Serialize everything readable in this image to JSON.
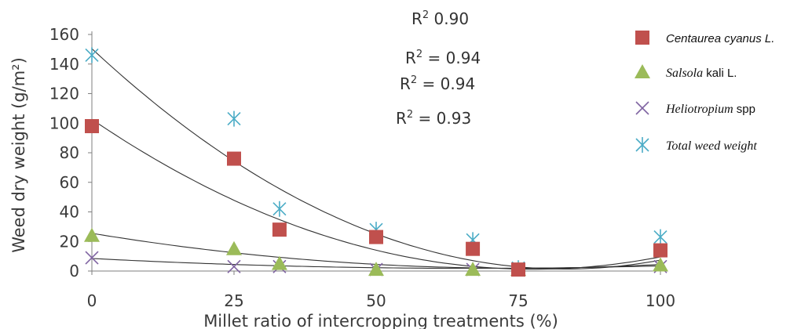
{
  "chart_data": {
    "type": "scatter",
    "title": "",
    "xlabel": "Millet ratio of intercropping treatments (%)",
    "ylabel": "Weed dry weight (g/m2)",
    "ylabel_display": "Weed dry weight (g/m²)",
    "x_ticks": [
      0,
      25,
      50,
      75,
      100
    ],
    "y_ticks": [
      0,
      20,
      40,
      60,
      80,
      100,
      120,
      140,
      160
    ],
    "xlim": [
      0,
      100
    ],
    "ylim": [
      0,
      160
    ],
    "grid": false,
    "legend_position": "right",
    "series": [
      {
        "name": "Centaurea cyanus L.",
        "marker": "square",
        "color": "#c0504d",
        "x": [
          0,
          25,
          33,
          50,
          67,
          75,
          100
        ],
        "y": [
          98,
          76,
          28,
          23,
          15,
          1,
          14
        ],
        "trend_coeffs": [
          102.6,
          -2.61,
          0.0168
        ]
      },
      {
        "name": "Salsola kali L.",
        "marker": "triangle",
        "color": "#9bbb59",
        "x": [
          0,
          25,
          33,
          50,
          67,
          75,
          100
        ],
        "y": [
          24,
          15,
          5,
          1,
          1,
          1,
          4
        ],
        "trend_coeffs": [
          25.5,
          -0.63,
          0.0042
        ]
      },
      {
        "name": "Heliotropium spp",
        "marker": "x",
        "color": "#8064a2",
        "x": [
          0,
          25,
          33,
          50,
          67,
          75,
          100
        ],
        "y": [
          9,
          3,
          3,
          1,
          1,
          1,
          3
        ],
        "trend_coeffs": [
          8.5,
          -0.2,
          0.0015
        ]
      },
      {
        "name": "Total weed weight",
        "marker": "asterisk",
        "color": "#4bacc6",
        "x": [
          0,
          25,
          33,
          50,
          67,
          75,
          100
        ],
        "y": [
          146,
          103,
          42,
          28,
          21,
          2,
          23
        ],
        "trend_coeffs": [
          150.4,
          -3.58,
          0.0215
        ]
      }
    ],
    "annotations": [
      {
        "prefix": "R",
        "sup": "2",
        "text": " 0.90"
      },
      {
        "prefix": "R",
        "sup": "2",
        "text": " = 0.94"
      },
      {
        "prefix": "R",
        "sup": "2",
        "text": " = 0.94"
      },
      {
        "prefix": "R",
        "sup": "2",
        "text": " = 0.93"
      }
    ],
    "legend": [
      {
        "parts": [
          {
            "t": "Centaurea cyanus L.",
            "cls": "leg-sans-i"
          }
        ]
      },
      {
        "parts": [
          {
            "t": "Salsola",
            "cls": "leg-serif"
          },
          {
            "t": " kali L.",
            "cls": "leg-sans"
          }
        ]
      },
      {
        "parts": [
          {
            "t": "Heliotropium",
            "cls": "leg-serif"
          },
          {
            "t": " spp",
            "cls": "leg-sans"
          }
        ]
      },
      {
        "parts": [
          {
            "t": "Total weed weight",
            "cls": "leg-serif"
          }
        ]
      }
    ]
  }
}
